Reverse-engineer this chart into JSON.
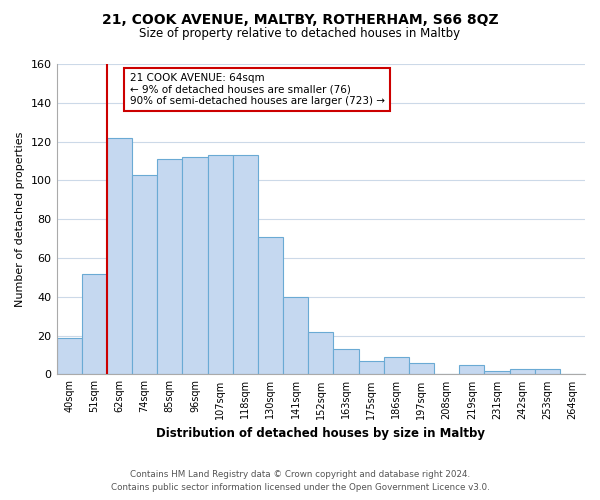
{
  "title": "21, COOK AVENUE, MALTBY, ROTHERHAM, S66 8QZ",
  "subtitle": "Size of property relative to detached houses in Maltby",
  "xlabel": "Distribution of detached houses by size in Maltby",
  "ylabel": "Number of detached properties",
  "bar_labels": [
    "40sqm",
    "51sqm",
    "62sqm",
    "74sqm",
    "85sqm",
    "96sqm",
    "107sqm",
    "118sqm",
    "130sqm",
    "141sqm",
    "152sqm",
    "163sqm",
    "175sqm",
    "186sqm",
    "197sqm",
    "208sqm",
    "219sqm",
    "231sqm",
    "242sqm",
    "253sqm",
    "264sqm"
  ],
  "bar_values": [
    19,
    52,
    122,
    103,
    111,
    112,
    113,
    113,
    71,
    40,
    22,
    13,
    7,
    9,
    6,
    0,
    5,
    2,
    3,
    3,
    0
  ],
  "bar_color": "#c5d8f0",
  "bar_edge_color": "#6aaad4",
  "highlight_line_color": "#cc0000",
  "ylim": [
    0,
    160
  ],
  "yticks": [
    0,
    20,
    40,
    60,
    80,
    100,
    120,
    140,
    160
  ],
  "annotation_line1": "21 COOK AVENUE: 64sqm",
  "annotation_line2": "← 9% of detached houses are smaller (76)",
  "annotation_line3": "90% of semi-detached houses are larger (723) →",
  "annotation_box_color": "#ffffff",
  "annotation_box_edge": "#cc0000",
  "footer_line1": "Contains HM Land Registry data © Crown copyright and database right 2024.",
  "footer_line2": "Contains public sector information licensed under the Open Government Licence v3.0.",
  "grid_color": "#ccd9e8",
  "background_color": "#ffffff"
}
